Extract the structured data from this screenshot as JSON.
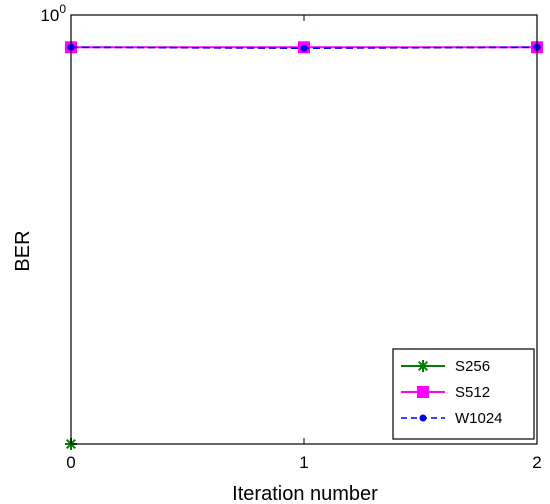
{
  "chart_data": {
    "type": "line",
    "title": "",
    "xlabel": "Iteration number",
    "ylabel": "BER",
    "xlim": [
      0,
      2
    ],
    "x_ticks": [
      "0",
      "1",
      "2"
    ],
    "y_scale": "log",
    "y_ticks": [
      {
        "base": "10",
        "exp": "0"
      }
    ],
    "grid": false,
    "legend_position": "bottom-right",
    "series": [
      {
        "name": "S256",
        "color": "#008000",
        "marker": "asterisk",
        "line_style": "solid",
        "x": [
          0
        ],
        "y": [
          0.0001
        ]
      },
      {
        "name": "S512",
        "color": "#ff00ff",
        "marker": "square",
        "line_style": "solid",
        "x": [
          0,
          1,
          2
        ],
        "y": [
          0.5,
          0.5,
          0.5
        ]
      },
      {
        "name": "W1024",
        "color": "#0000ff",
        "marker": "dot",
        "line_style": "dashed",
        "x": [
          0,
          1,
          2
        ],
        "y": [
          0.5,
          0.49,
          0.5
        ]
      }
    ]
  }
}
